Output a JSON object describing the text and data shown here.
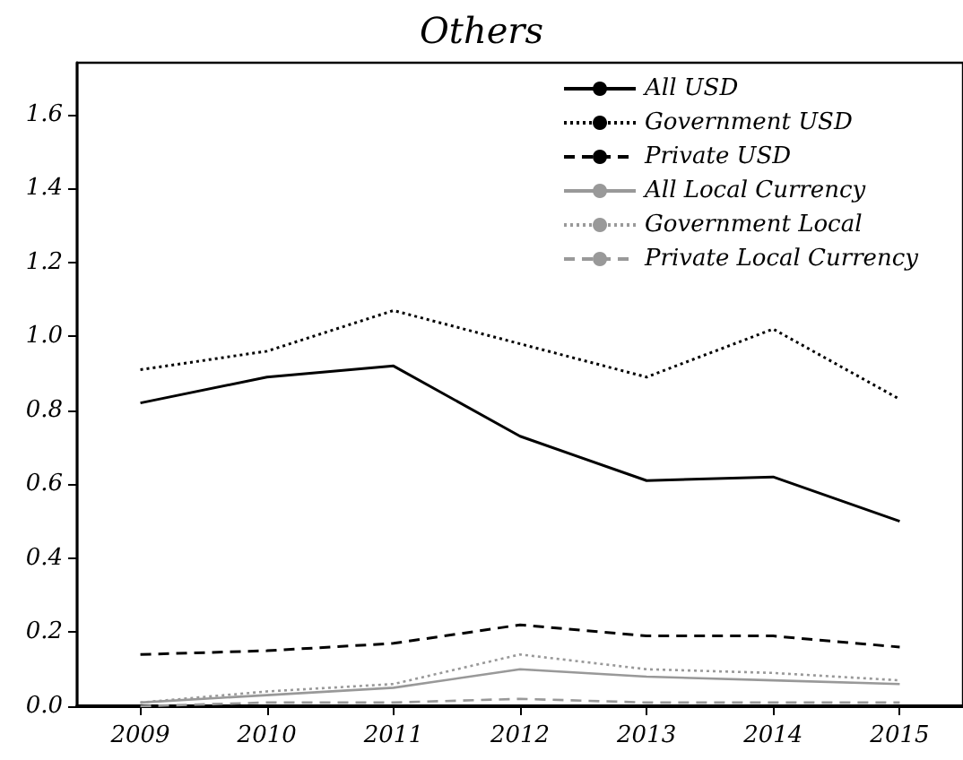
{
  "chart_data": {
    "type": "line",
    "title": "Others",
    "categories": [
      "2009",
      "2010",
      "2011",
      "2012",
      "2013",
      "2014",
      "2015"
    ],
    "series": [
      {
        "name": "All USD",
        "color": "#000000",
        "line_style": "solid",
        "values": [
          0.82,
          0.89,
          0.92,
          0.73,
          0.61,
          0.62,
          0.5
        ]
      },
      {
        "name": "Government USD",
        "color": "#000000",
        "line_style": "dotted",
        "values": [
          0.91,
          0.96,
          1.07,
          0.98,
          0.89,
          1.02,
          0.83
        ]
      },
      {
        "name": "Private USD",
        "color": "#000000",
        "line_style": "dashed",
        "values": [
          0.14,
          0.15,
          0.17,
          0.22,
          0.19,
          0.19,
          0.16
        ]
      },
      {
        "name": "All Local Currency",
        "color": "#999999",
        "line_style": "solid",
        "values": [
          0.01,
          0.03,
          0.05,
          0.1,
          0.08,
          0.07,
          0.06
        ]
      },
      {
        "name": "Government Local",
        "color": "#999999",
        "line_style": "dotted",
        "values": [
          0.01,
          0.04,
          0.06,
          0.14,
          0.1,
          0.09,
          0.07
        ]
      },
      {
        "name": "Private Local Currency",
        "color": "#999999",
        "line_style": "dashed",
        "values": [
          0.0,
          0.01,
          0.01,
          0.02,
          0.01,
          0.01,
          0.01
        ]
      }
    ],
    "ylim": [
      0,
      1.74
    ],
    "yticks": [
      {
        "value": 0,
        "label": "0.0"
      },
      {
        "value": 0.2,
        "label": "0.2"
      },
      {
        "value": 0.4,
        "label": "0.4"
      },
      {
        "value": 0.6,
        "label": "0.6"
      },
      {
        "value": 0.8,
        "label": "0.8"
      },
      {
        "value": 1.0,
        "label": "1.0"
      },
      {
        "value": 1.2,
        "label": "1.2"
      },
      {
        "value": 1.4,
        "label": "1.4"
      },
      {
        "value": 1.6,
        "label": "1.6"
      }
    ],
    "grid": false,
    "legend": "top right",
    "marker": "none"
  }
}
